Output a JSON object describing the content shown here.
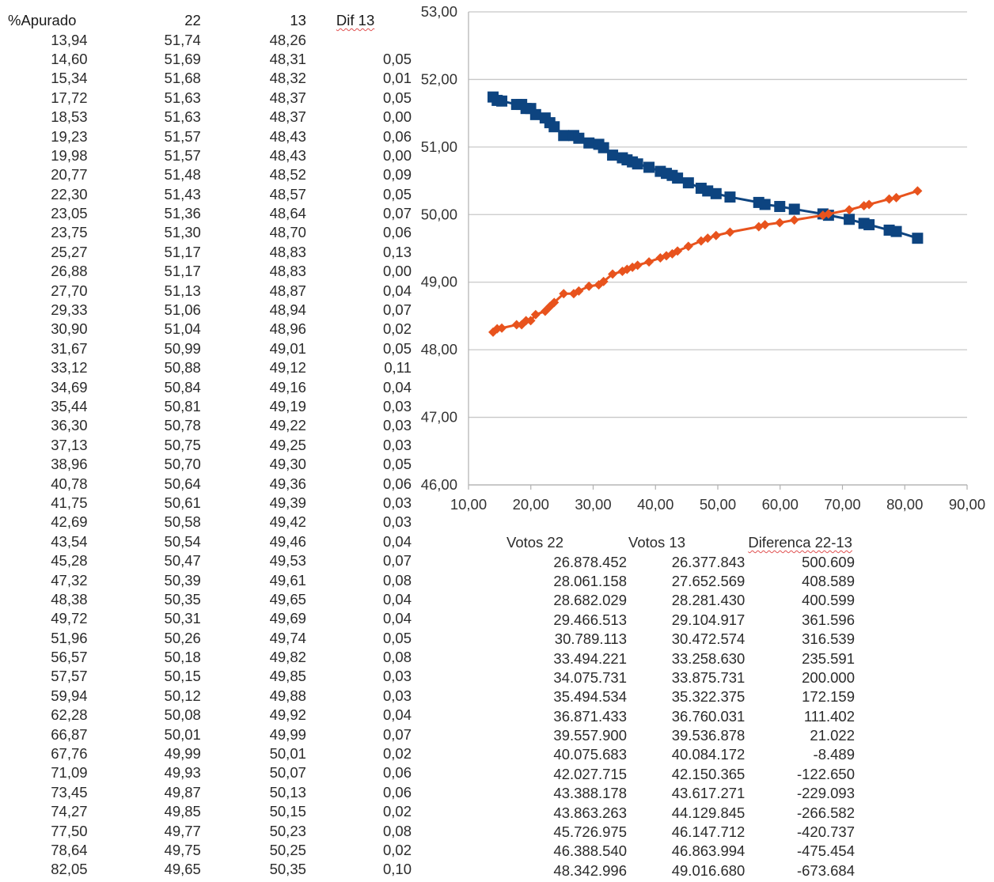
{
  "left_table": {
    "headers": [
      "%Apurado",
      "22",
      "13",
      "Dif 13"
    ],
    "rows": [
      [
        "13,94",
        "51,74",
        "48,26",
        ""
      ],
      [
        "14,60",
        "51,69",
        "48,31",
        "0,05"
      ],
      [
        "15,34",
        "51,68",
        "48,32",
        "0,01"
      ],
      [
        "17,72",
        "51,63",
        "48,37",
        "0,05"
      ],
      [
        "18,53",
        "51,63",
        "48,37",
        "0,00"
      ],
      [
        "19,23",
        "51,57",
        "48,43",
        "0,06"
      ],
      [
        "19,98",
        "51,57",
        "48,43",
        "0,00"
      ],
      [
        "20,77",
        "51,48",
        "48,52",
        "0,09"
      ],
      [
        "22,30",
        "51,43",
        "48,57",
        "0,05"
      ],
      [
        "23,05",
        "51,36",
        "48,64",
        "0,07"
      ],
      [
        "23,75",
        "51,30",
        "48,70",
        "0,06"
      ],
      [
        "25,27",
        "51,17",
        "48,83",
        "0,13"
      ],
      [
        "26,88",
        "51,17",
        "48,83",
        "0,00"
      ],
      [
        "27,70",
        "51,13",
        "48,87",
        "0,04"
      ],
      [
        "29,33",
        "51,06",
        "48,94",
        "0,07"
      ],
      [
        "30,90",
        "51,04",
        "48,96",
        "0,02"
      ],
      [
        "31,67",
        "50,99",
        "49,01",
        "0,05"
      ],
      [
        "33,12",
        "50,88",
        "49,12",
        "0,11"
      ],
      [
        "34,69",
        "50,84",
        "49,16",
        "0,04"
      ],
      [
        "35,44",
        "50,81",
        "49,19",
        "0,03"
      ],
      [
        "36,30",
        "50,78",
        "49,22",
        "0,03"
      ],
      [
        "37,13",
        "50,75",
        "49,25",
        "0,03"
      ],
      [
        "38,96",
        "50,70",
        "49,30",
        "0,05"
      ],
      [
        "40,78",
        "50,64",
        "49,36",
        "0,06"
      ],
      [
        "41,75",
        "50,61",
        "49,39",
        "0,03"
      ],
      [
        "42,69",
        "50,58",
        "49,42",
        "0,03"
      ],
      [
        "43,54",
        "50,54",
        "49,46",
        "0,04"
      ],
      [
        "45,28",
        "50,47",
        "49,53",
        "0,07"
      ],
      [
        "47,32",
        "50,39",
        "49,61",
        "0,08"
      ],
      [
        "48,38",
        "50,35",
        "49,65",
        "0,04"
      ],
      [
        "49,72",
        "50,31",
        "49,69",
        "0,04"
      ],
      [
        "51,96",
        "50,26",
        "49,74",
        "0,05"
      ],
      [
        "56,57",
        "50,18",
        "49,82",
        "0,08"
      ],
      [
        "57,57",
        "50,15",
        "49,85",
        "0,03"
      ],
      [
        "59,94",
        "50,12",
        "49,88",
        "0,03"
      ],
      [
        "62,28",
        "50,08",
        "49,92",
        "0,04"
      ],
      [
        "66,87",
        "50,01",
        "49,99",
        "0,07"
      ],
      [
        "67,76",
        "49,99",
        "50,01",
        "0,02"
      ],
      [
        "71,09",
        "49,93",
        "50,07",
        "0,06"
      ],
      [
        "73,45",
        "49,87",
        "50,13",
        "0,06"
      ],
      [
        "74,27",
        "49,85",
        "50,15",
        "0,02"
      ],
      [
        "77,50",
        "49,77",
        "50,23",
        "0,08"
      ],
      [
        "78,64",
        "49,75",
        "50,25",
        "0,02"
      ],
      [
        "82,05",
        "49,65",
        "50,35",
        "0,10"
      ]
    ]
  },
  "votes_table": {
    "headers": [
      "Votos 22",
      "Votos 13",
      "Diferenca 22-13"
    ],
    "rows": [
      [
        "26.878.452",
        "26.377.843",
        "500.609"
      ],
      [
        "28.061.158",
        "27.652.569",
        "408.589"
      ],
      [
        "28.682.029",
        "28.281.430",
        "400.599"
      ],
      [
        "29.466.513",
        "29.104.917",
        "361.596"
      ],
      [
        "30.789.113",
        "30.472.574",
        "316.539"
      ],
      [
        "33.494.221",
        "33.258.630",
        "235.591"
      ],
      [
        "34.075.731",
        "33.875.731",
        "200.000"
      ],
      [
        "35.494.534",
        "35.322.375",
        "172.159"
      ],
      [
        "36.871.433",
        "36.760.031",
        "111.402"
      ],
      [
        "39.557.900",
        "39.536.878",
        "21.022"
      ],
      [
        "40.075.683",
        "40.084.172",
        "-8.489"
      ],
      [
        "42.027.715",
        "42.150.365",
        "-122.650"
      ],
      [
        "43.388.178",
        "43.617.271",
        "-229.093"
      ],
      [
        "43.863.263",
        "44.129.845",
        "-266.582"
      ],
      [
        "45.726.975",
        "46.147.712",
        "-420.737"
      ],
      [
        "46.388.540",
        "46.863.994",
        "-475.454"
      ],
      [
        "48.342.996",
        "49.016.680",
        "-673.684"
      ]
    ]
  },
  "chart_data": {
    "type": "line",
    "x": [
      13.94,
      14.6,
      15.34,
      17.72,
      18.53,
      19.23,
      19.98,
      20.77,
      22.3,
      23.05,
      23.75,
      25.27,
      26.88,
      27.7,
      29.33,
      30.9,
      31.67,
      33.12,
      34.69,
      35.44,
      36.3,
      37.13,
      38.96,
      40.78,
      41.75,
      42.69,
      43.54,
      45.28,
      47.32,
      48.38,
      49.72,
      51.96,
      56.57,
      57.57,
      59.94,
      62.28,
      66.87,
      67.76,
      71.09,
      73.45,
      74.27,
      77.5,
      78.64,
      82.05
    ],
    "series": [
      {
        "color": "#0d4480",
        "marker": "square",
        "values": [
          51.74,
          51.69,
          51.68,
          51.63,
          51.63,
          51.57,
          51.57,
          51.48,
          51.43,
          51.36,
          51.3,
          51.17,
          51.17,
          51.13,
          51.06,
          51.04,
          50.99,
          50.88,
          50.84,
          50.81,
          50.78,
          50.75,
          50.7,
          50.64,
          50.61,
          50.58,
          50.54,
          50.47,
          50.39,
          50.35,
          50.31,
          50.26,
          50.18,
          50.15,
          50.12,
          50.08,
          50.01,
          49.99,
          49.93,
          49.87,
          49.85,
          49.77,
          49.75,
          49.65
        ]
      },
      {
        "color": "#e8531d",
        "marker": "diamond",
        "values": [
          48.26,
          48.31,
          48.32,
          48.37,
          48.37,
          48.43,
          48.43,
          48.52,
          48.57,
          48.64,
          48.7,
          48.83,
          48.83,
          48.87,
          48.94,
          48.96,
          49.01,
          49.12,
          49.16,
          49.19,
          49.22,
          49.25,
          49.3,
          49.36,
          49.39,
          49.42,
          49.46,
          49.53,
          49.61,
          49.65,
          49.69,
          49.74,
          49.82,
          49.85,
          49.88,
          49.92,
          49.99,
          50.01,
          50.07,
          50.13,
          50.15,
          50.23,
          50.25,
          50.35
        ]
      }
    ],
    "xlim": [
      10,
      90
    ],
    "ylim": [
      46,
      53
    ],
    "x_ticks": [
      "10,00",
      "20,00",
      "30,00",
      "40,00",
      "50,00",
      "60,00",
      "70,00",
      "80,00",
      "90,00"
    ],
    "y_ticks": [
      "46,00",
      "47,00",
      "48,00",
      "49,00",
      "50,00",
      "51,00",
      "52,00",
      "53,00"
    ],
    "grid": "horizontal"
  }
}
